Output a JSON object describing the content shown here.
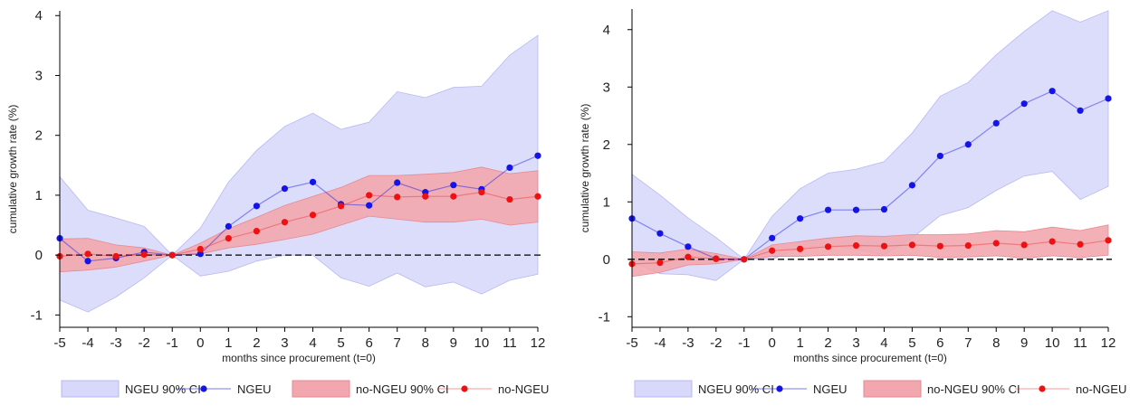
{
  "colors": {
    "ngeu_line": "#1414e6",
    "ngeu_band": "#d8d8fb",
    "ngeu_band_edge": "#b9b9f0",
    "nongeu_line": "#ee1111",
    "nongeu_band": "#f2a7ae",
    "zero_line": "#000000"
  },
  "legend": {
    "ngeu_ci": "NGEU 90% CI",
    "ngeu": "NGEU",
    "nongeu_ci": "no-NGEU 90% CI",
    "nongeu": "no-NGEU"
  },
  "chart_data": [
    {
      "type": "line",
      "xlabel": "months since procurement (t=0)",
      "ylabel": "cumulative growth rate (%)",
      "x": [
        -5,
        -4,
        -3,
        -2,
        -1,
        0,
        1,
        2,
        3,
        4,
        5,
        6,
        7,
        8,
        9,
        10,
        11,
        12
      ],
      "xlim": [
        -5,
        12
      ],
      "ylim": [
        -1.1,
        4.2
      ],
      "yticks": [
        -1,
        0,
        1,
        2,
        3,
        4
      ],
      "series": [
        {
          "name": "NGEU",
          "values": [
            0.28,
            -0.1,
            -0.05,
            0.05,
            0,
            0.02,
            0.48,
            0.82,
            1.11,
            1.22,
            0.85,
            0.83,
            1.21,
            1.05,
            1.17,
            1.1,
            1.46,
            1.66
          ],
          "ci_low": [
            -0.75,
            -0.95,
            -0.7,
            -0.38,
            0,
            -0.35,
            -0.27,
            -0.1,
            0.0,
            0.0,
            -0.38,
            -0.52,
            -0.3,
            -0.53,
            -0.45,
            -0.65,
            -0.42,
            -0.32
          ],
          "ci_high": [
            1.31,
            0.75,
            0.62,
            0.48,
            0,
            0.45,
            1.22,
            1.75,
            2.15,
            2.37,
            2.1,
            2.22,
            2.73,
            2.63,
            2.8,
            2.82,
            3.34,
            3.67
          ]
        },
        {
          "name": "no-NGEU",
          "values": [
            -0.02,
            0.02,
            -0.02,
            0.01,
            0,
            0.1,
            0.28,
            0.4,
            0.55,
            0.67,
            0.82,
            1.0,
            0.97,
            0.98,
            0.98,
            1.05,
            0.93,
            0.98
          ],
          "ci_low": [
            -0.28,
            -0.25,
            -0.2,
            -0.1,
            0,
            0.02,
            0.12,
            0.18,
            0.26,
            0.35,
            0.5,
            0.65,
            0.6,
            0.55,
            0.55,
            0.6,
            0.5,
            0.55
          ],
          "ci_high": [
            0.27,
            0.28,
            0.17,
            0.12,
            0,
            0.2,
            0.44,
            0.63,
            0.83,
            0.98,
            1.13,
            1.33,
            1.33,
            1.35,
            1.38,
            1.47,
            1.36,
            1.41
          ]
        }
      ],
      "grid": false,
      "legend_position": "bottom"
    },
    {
      "type": "line",
      "xlabel": "months since procurement (t=0)",
      "ylabel": "cumulative growth rate (%)",
      "x": [
        -5,
        -4,
        -3,
        -2,
        -1,
        0,
        1,
        2,
        3,
        4,
        5,
        6,
        7,
        8,
        9,
        10,
        11,
        12
      ],
      "xlim": [
        -5,
        12
      ],
      "ylim": [
        -1.2,
        4.5
      ],
      "yticks": [
        -1,
        0,
        1,
        2,
        3,
        4
      ],
      "series": [
        {
          "name": "NGEU",
          "values": [
            0.71,
            0.45,
            0.22,
            0.01,
            0,
            0.37,
            0.71,
            0.86,
            0.86,
            0.87,
            1.29,
            1.8,
            2.0,
            2.37,
            2.71,
            2.93,
            2.59,
            2.8
          ],
          "ci_low": [
            -0.05,
            -0.25,
            -0.27,
            -0.37,
            0,
            0.0,
            0.2,
            0.25,
            0.17,
            0.08,
            0.37,
            0.76,
            0.9,
            1.2,
            1.45,
            1.53,
            1.04,
            1.27
          ],
          "ci_high": [
            1.48,
            1.12,
            0.72,
            0.38,
            0,
            0.75,
            1.23,
            1.5,
            1.57,
            1.7,
            2.2,
            2.84,
            3.08,
            3.56,
            3.97,
            4.33,
            4.13,
            4.33
          ]
        },
        {
          "name": "no-NGEU",
          "values": [
            -0.08,
            -0.06,
            0.04,
            0.01,
            0,
            0.15,
            0.18,
            0.22,
            0.24,
            0.23,
            0.25,
            0.23,
            0.24,
            0.28,
            0.25,
            0.31,
            0.26,
            0.33
          ],
          "ci_low": [
            -0.3,
            -0.23,
            -0.1,
            -0.08,
            0,
            0.05,
            0.05,
            0.07,
            0.07,
            0.06,
            0.07,
            0.03,
            0.04,
            0.06,
            0.02,
            0.06,
            0.03,
            0.07
          ],
          "ci_high": [
            0.13,
            0.11,
            0.18,
            0.1,
            0,
            0.25,
            0.31,
            0.37,
            0.41,
            0.4,
            0.43,
            0.43,
            0.44,
            0.5,
            0.48,
            0.56,
            0.5,
            0.6
          ]
        }
      ],
      "grid": false,
      "legend_position": "bottom"
    }
  ]
}
